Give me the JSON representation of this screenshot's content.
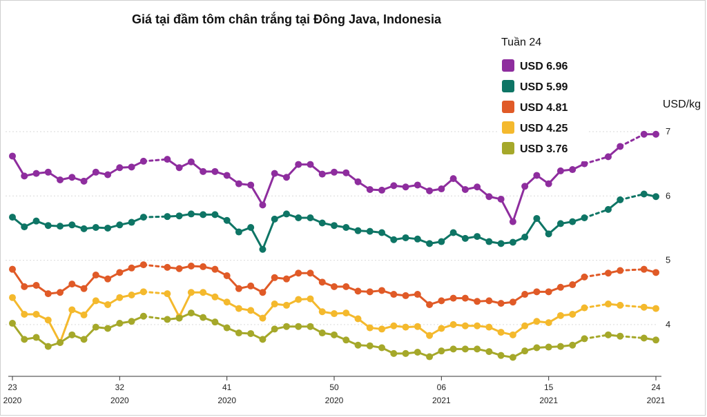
{
  "chart_data": {
    "type": "line",
    "title": "Giá tại đầm tôm chân trắng tại Đông Java, Indonesia",
    "unit_label": "USD/kg",
    "legend_title": "Tuần 24",
    "ylim": [
      3.2,
      7.3
    ],
    "y_ticks": [
      4,
      5,
      6,
      7
    ],
    "grid": true,
    "legend_position": "top-right",
    "x_ticks": [
      {
        "week": "23",
        "year": "2020"
      },
      {
        "week": "32",
        "year": "2020"
      },
      {
        "week": "41",
        "year": "2020"
      },
      {
        "week": "50",
        "year": "2020"
      },
      {
        "week": "06",
        "year": "2021"
      },
      {
        "week": "15",
        "year": "2021"
      },
      {
        "week": "24",
        "year": "2021"
      }
    ],
    "series": [
      {
        "name": "USD 6.96",
        "color": "#8e2d9e",
        "values": [
          6.62,
          6.31,
          6.35,
          6.37,
          6.25,
          6.29,
          6.23,
          6.37,
          6.33,
          6.44,
          6.45,
          6.54,
          null,
          6.57,
          6.44,
          6.53,
          6.38,
          6.38,
          6.32,
          6.19,
          6.17,
          5.86,
          6.35,
          6.29,
          6.49,
          6.49,
          6.34,
          6.37,
          6.36,
          6.22,
          6.1,
          6.09,
          6.16,
          6.14,
          6.17,
          6.08,
          6.11,
          6.27,
          6.1,
          6.14,
          5.99,
          5.95,
          5.6,
          6.15,
          6.32,
          6.19,
          6.39,
          6.41,
          6.5,
          null,
          6.61,
          6.77,
          null,
          6.96,
          6.96
        ]
      },
      {
        "name": "USD 5.99",
        "color": "#0e7565",
        "values": [
          5.67,
          5.52,
          5.61,
          5.54,
          5.53,
          5.55,
          5.49,
          5.51,
          5.5,
          5.55,
          5.59,
          5.67,
          null,
          5.68,
          5.69,
          5.72,
          5.71,
          5.71,
          5.62,
          5.44,
          5.51,
          5.17,
          5.64,
          5.72,
          5.66,
          5.66,
          5.58,
          5.54,
          5.51,
          5.46,
          5.45,
          5.43,
          5.32,
          5.35,
          5.33,
          5.26,
          5.29,
          5.43,
          5.34,
          5.37,
          5.29,
          5.26,
          5.28,
          5.36,
          5.65,
          5.41,
          5.57,
          5.6,
          5.66,
          null,
          5.79,
          5.94,
          null,
          6.03,
          5.99
        ]
      },
      {
        "name": "USD 4.81",
        "color": "#e05a27",
        "values": [
          4.86,
          4.59,
          4.61,
          4.48,
          4.5,
          4.63,
          4.56,
          4.77,
          4.71,
          4.81,
          4.88,
          4.93,
          null,
          4.89,
          4.87,
          4.91,
          4.9,
          4.86,
          4.76,
          4.56,
          4.6,
          4.5,
          4.73,
          4.71,
          4.8,
          4.8,
          4.66,
          4.59,
          4.59,
          4.52,
          4.51,
          4.53,
          4.47,
          4.45,
          4.47,
          4.31,
          4.37,
          4.41,
          4.41,
          4.36,
          4.37,
          4.33,
          4.35,
          4.47,
          4.51,
          4.51,
          4.58,
          4.62,
          4.74,
          null,
          4.8,
          4.84,
          null,
          4.86,
          4.81
        ]
      },
      {
        "name": "USD 4.25",
        "color": "#f4b92d",
        "values": [
          4.42,
          4.16,
          4.16,
          4.07,
          3.72,
          4.23,
          4.15,
          4.37,
          4.31,
          4.42,
          4.46,
          4.51,
          null,
          4.48,
          4.12,
          4.5,
          4.5,
          4.43,
          4.35,
          4.25,
          4.22,
          4.1,
          4.32,
          4.3,
          4.39,
          4.4,
          4.2,
          4.17,
          4.18,
          4.09,
          3.95,
          3.93,
          3.98,
          3.96,
          3.97,
          3.83,
          3.94,
          4.0,
          3.98,
          3.98,
          3.96,
          3.88,
          3.84,
          3.98,
          4.05,
          4.03,
          4.14,
          4.16,
          4.26,
          null,
          4.32,
          4.3,
          null,
          4.27,
          4.25
        ]
      },
      {
        "name": "USD 3.76",
        "color": "#a5a82a",
        "values": [
          4.02,
          3.77,
          3.8,
          3.66,
          3.72,
          3.84,
          3.77,
          3.96,
          3.94,
          4.02,
          4.05,
          4.13,
          null,
          4.08,
          4.1,
          4.18,
          4.11,
          4.04,
          3.95,
          3.87,
          3.86,
          3.77,
          3.93,
          3.97,
          3.97,
          3.97,
          3.87,
          3.84,
          3.76,
          3.68,
          3.67,
          3.64,
          3.55,
          3.55,
          3.57,
          3.5,
          3.59,
          3.62,
          3.62,
          3.62,
          3.58,
          3.52,
          3.49,
          3.59,
          3.64,
          3.65,
          3.66,
          3.68,
          3.78,
          null,
          3.84,
          3.82,
          null,
          3.79,
          3.76
        ]
      }
    ]
  }
}
